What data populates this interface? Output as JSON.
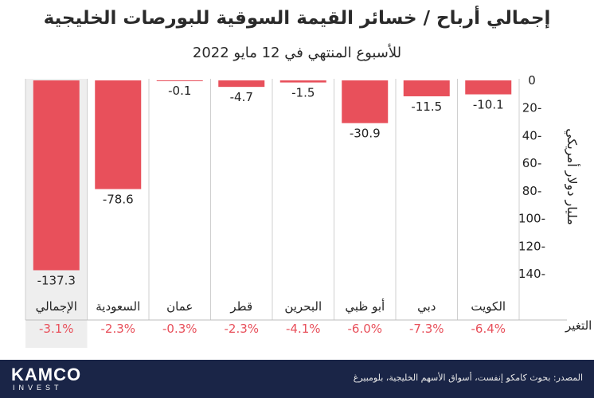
{
  "title": "إجمالي أرباح / خسائر القيمة السوقية للبورصات الخليجية",
  "subtitle": "للأسبوع المنتهي في 12 مايو 2022",
  "change_label": "التغير",
  "source": "المصدر: بحوث كامكو إنفست، أسواق الأسهم الخليجية، بلومبيرغ",
  "logo": {
    "main": "KAMCO",
    "sub": "INVEST"
  },
  "colors": {
    "bar": "#e8505b",
    "highlight_bg": "#eeeeee",
    "change_text": "#e8505b",
    "footer": "#1a2547"
  },
  "chart_data": {
    "type": "bar",
    "title": "إجمالي أرباح / خسائر القيمة السوقية للبورصات الخليجية",
    "subtitle": "للأسبوع المنتهي في 12 مايو 2022",
    "ylabel": "مليار دولار أمريكي",
    "ylim": [
      -150,
      0
    ],
    "yticks": [
      0,
      -20,
      -40,
      -60,
      -80,
      -100,
      -120,
      -140
    ],
    "ytick_labels": [
      "0",
      "20-",
      "40-",
      "60-",
      "80-",
      "100-",
      "120-",
      "140-"
    ],
    "axis_side": "right",
    "categories": [
      "الكويت",
      "دبي",
      "أبو ظبي",
      "البحرين",
      "قطر",
      "عمان",
      "السعودية",
      "الإجمالي"
    ],
    "values": [
      -10.1,
      -11.5,
      -30.9,
      -1.5,
      -4.7,
      -0.1,
      -78.6,
      -137.3
    ],
    "value_labels": [
      "-10.1",
      "-11.5",
      "-30.9",
      "-1.5",
      "-4.7",
      "-0.1",
      "-78.6",
      "-137.3"
    ],
    "changes": [
      "-6.4%",
      "-7.3%",
      "-6.0%",
      "-4.1%",
      "-2.3%",
      "-0.3%",
      "-2.3%",
      "-3.1%"
    ],
    "highlight": "الإجمالي",
    "grid": false
  }
}
